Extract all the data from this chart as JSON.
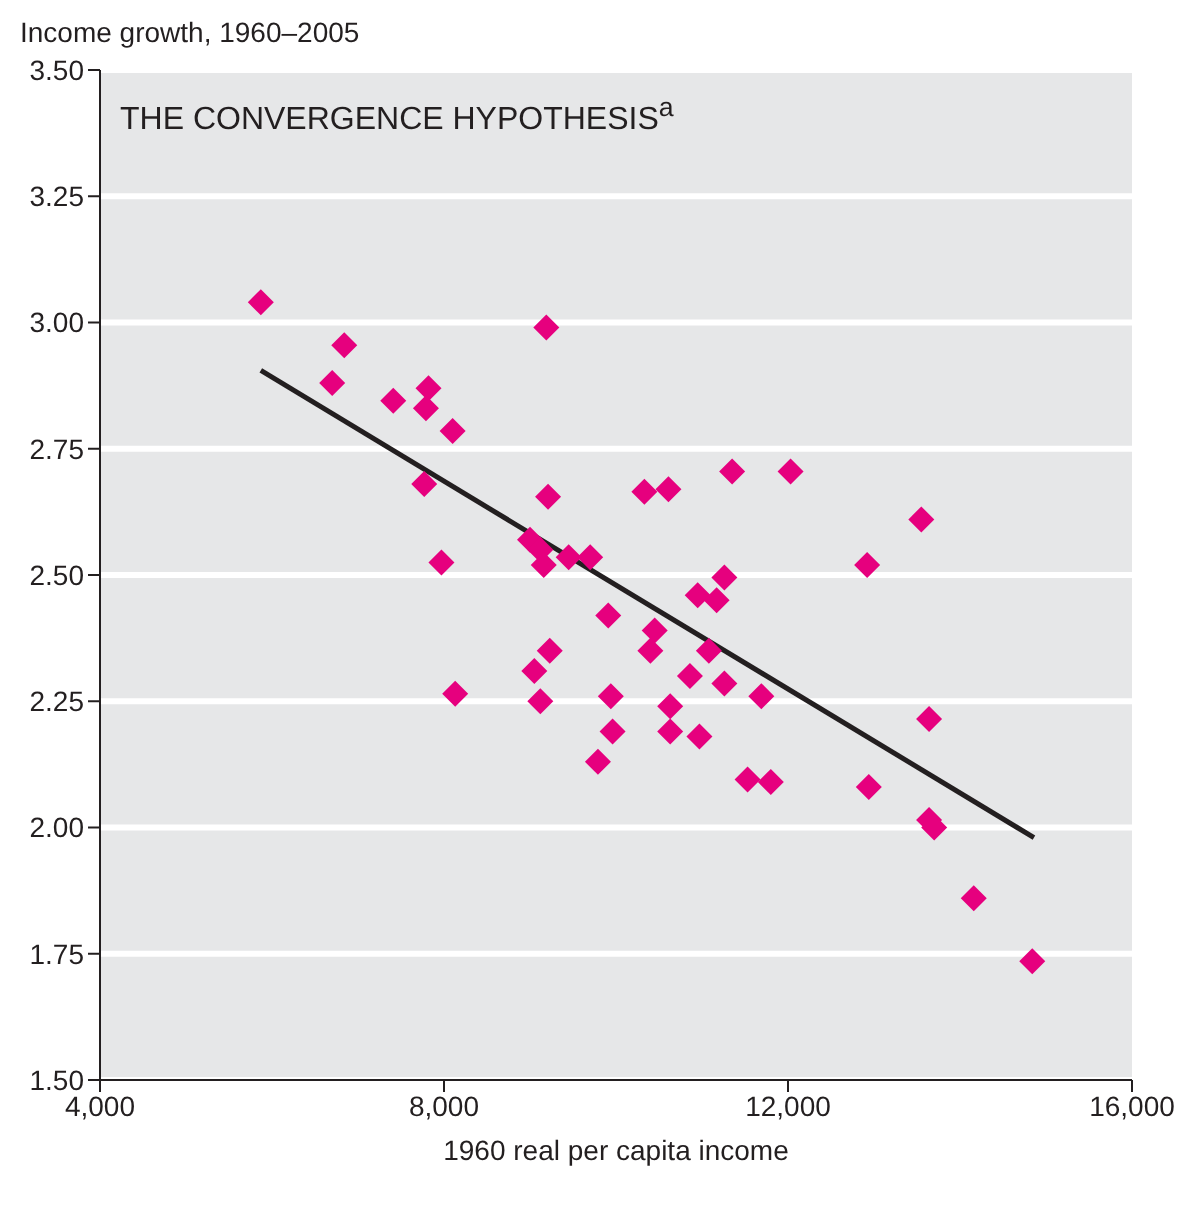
{
  "chart_data": {
    "type": "scatter",
    "title": "THE CONVERGENCE HYPOTHESIS$^{a}$",
    "xlabel": "1960 real per capita income",
    "ylabel": "Income growth, 1960–2005",
    "x": [
      5870,
      6840,
      6700,
      7410,
      7820,
      7790,
      8100,
      7770,
      7970,
      8130,
      9190,
      9210,
      9000,
      9120,
      9160,
      9450,
      9700,
      9230,
      9050,
      9120,
      9910,
      9940,
      9960,
      9790,
      10330,
      10610,
      11350,
      12030,
      10450,
      10400,
      10630,
      10630,
      10860,
      10950,
      11080,
      11170,
      11260,
      11260,
      10970,
      11690,
      11530,
      11800,
      12920,
      13550,
      12940,
      13640,
      13640,
      13700,
      14160,
      14840
    ],
    "series": [
      {
        "marker": "diamond",
        "color": "#e6007e",
        "values": [
          3.04,
          2.955,
          2.88,
          2.845,
          2.87,
          2.83,
          2.785,
          2.68,
          2.525,
          2.265,
          2.99,
          2.655,
          2.57,
          2.55,
          2.52,
          2.535,
          2.535,
          2.35,
          2.31,
          2.25,
          2.42,
          2.26,
          2.19,
          2.13,
          2.665,
          2.67,
          2.705,
          2.705,
          2.39,
          2.35,
          2.24,
          2.19,
          2.3,
          2.46,
          2.35,
          2.45,
          2.495,
          2.285,
          2.18,
          2.26,
          2.095,
          2.09,
          2.52,
          2.61,
          2.08,
          2.215,
          2.015,
          2.0,
          1.86,
          1.735
        ]
      },
      {
        "type": "line",
        "color": "#231f20",
        "x": [
          5870,
          14860
        ],
        "values": [
          2.905,
          1.98
        ]
      }
    ],
    "grid": "y",
    "legend": false,
    "xlim": [
      4000,
      16000
    ],
    "xticks": [
      {
        "value": 4000,
        "label": "4,000"
      },
      {
        "value": 8000,
        "label": "8,000"
      },
      {
        "value": 12000,
        "label": "12,000"
      },
      {
        "value": 16000,
        "label": "16,000"
      }
    ],
    "ylim": [
      1.5,
      3.5
    ],
    "yticks": [
      {
        "value": 1.5,
        "label": "1.50"
      },
      {
        "value": 1.75,
        "label": "1.75"
      },
      {
        "value": 2,
        "label": "2.00"
      },
      {
        "value": 2.25,
        "label": "2.25"
      },
      {
        "value": 2.5,
        "label": "2.50"
      },
      {
        "value": 2.75,
        "label": "2.75"
      },
      {
        "value": 3,
        "label": "3.00"
      },
      {
        "value": 3.25,
        "label": "3.25"
      },
      {
        "value": 3.5,
        "label": "3.50"
      }
    ]
  }
}
